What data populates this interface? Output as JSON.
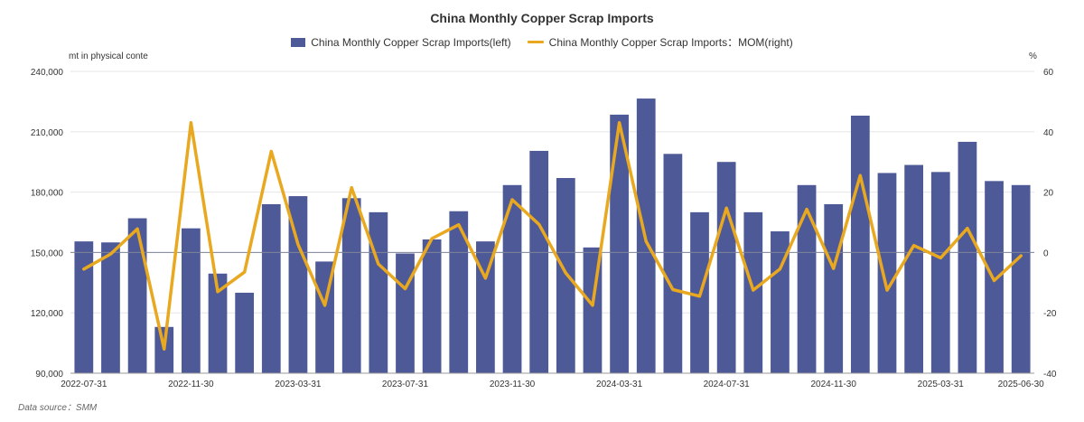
{
  "chart_data": {
    "type": "bar",
    "title": "China Monthly Copper Scrap Imports",
    "categories": [
      "2022-07",
      "2022-08",
      "2022-09",
      "2022-10",
      "2022-11",
      "2022-12",
      "2023-01",
      "2023-02",
      "2023-03",
      "2023-04",
      "2023-05",
      "2023-06",
      "2023-07",
      "2023-08",
      "2023-09",
      "2023-10",
      "2023-11",
      "2023-12",
      "2024-01",
      "2024-02",
      "2024-03",
      "2024-04",
      "2024-05",
      "2024-06",
      "2024-07",
      "2024-08",
      "2024-09",
      "2024-10",
      "2024-11",
      "2024-12",
      "2025-01",
      "2025-02",
      "2025-03",
      "2025-04",
      "2025-05",
      "2025-06"
    ],
    "x_tick_labels": [
      {
        "index": 0,
        "label": "2022-07-31"
      },
      {
        "index": 4,
        "label": "2022-11-30"
      },
      {
        "index": 8,
        "label": "2023-03-31"
      },
      {
        "index": 12,
        "label": "2023-07-31"
      },
      {
        "index": 16,
        "label": "2023-11-30"
      },
      {
        "index": 20,
        "label": "2024-03-31"
      },
      {
        "index": 24,
        "label": "2024-07-31"
      },
      {
        "index": 28,
        "label": "2024-11-30"
      },
      {
        "index": 32,
        "label": "2025-03-31"
      },
      {
        "index": 35,
        "label": "2025-06-30"
      }
    ],
    "series": [
      {
        "name": "China Monthly Copper Scrap Imports(left)",
        "type": "bar",
        "axis": "left",
        "color": "#4e5998",
        "values": [
          155500,
          155000,
          167000,
          113000,
          162000,
          139500,
          130000,
          174000,
          178000,
          145500,
          177000,
          170000,
          149500,
          156500,
          170500,
          155500,
          183500,
          200500,
          187000,
          152500,
          218500,
          226500,
          199000,
          170000,
          195000,
          170000,
          160500,
          183500,
          174000,
          218000,
          189500,
          193500,
          190000,
          205000,
          185500,
          183500
        ]
      },
      {
        "name": "China Monthly Copper Scrap Imports：MOM(right)",
        "type": "line",
        "axis": "right",
        "color": "#e8a820",
        "values": [
          -5.5,
          -0.5,
          7.8,
          -32,
          43,
          -13,
          -6.5,
          33.5,
          2.7,
          -17.5,
          21.5,
          -3.8,
          -12,
          4.6,
          9.2,
          -8.5,
          17.5,
          9.3,
          -6.8,
          -17.5,
          43,
          3.7,
          -12.3,
          -14.5,
          14.7,
          -12.5,
          -5.5,
          14.3,
          -5.3,
          25.5,
          -12.5,
          2.3,
          -1.8,
          8,
          -9.3,
          -1.1
        ]
      }
    ],
    "y_left": {
      "label": "mt in physical conte",
      "min": 90000,
      "max": 240000,
      "ticks": [
        90000,
        120000,
        150000,
        180000,
        210000,
        240000
      ],
      "tick_labels": [
        "90,000",
        "120,000",
        "150,000",
        "180,000",
        "210,000",
        "240,000"
      ]
    },
    "y_right": {
      "label": "%",
      "min": -40,
      "max": 60,
      "ticks": [
        -40,
        -20,
        0,
        20,
        40,
        60
      ],
      "tick_labels": [
        "-40",
        "-20",
        "0",
        "20",
        "40",
        "60"
      ]
    },
    "grid": true,
    "legend_position": "top-center",
    "source_note": "Data source：SMM"
  }
}
